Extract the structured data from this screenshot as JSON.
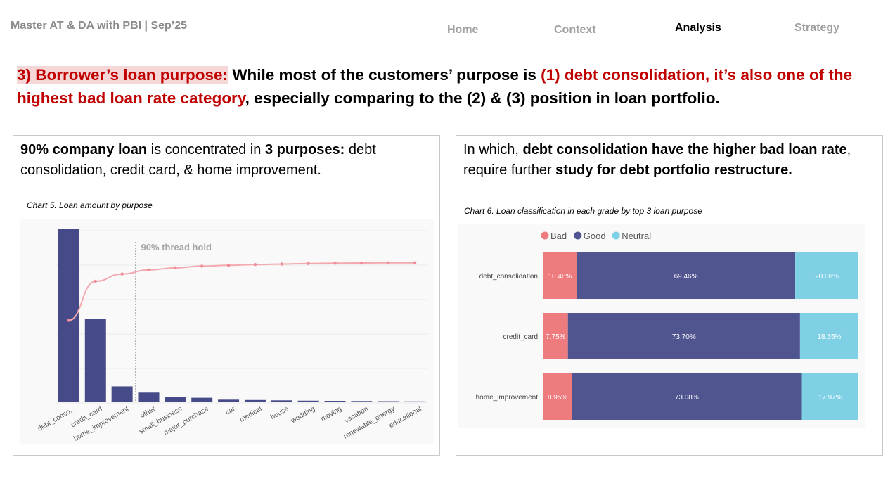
{
  "header": {
    "brand": "Master AT & DA with PBI | Sep’25",
    "nav": [
      "Home",
      "Context",
      "Analysis",
      "Strategy"
    ],
    "active_nav": "Analysis"
  },
  "headline": {
    "label": "3) Borrower’s loan purpose:",
    "part1": " While most of the customers’ purpose is ",
    "red": "(1) debt consolidation, it’s also one of the highest bad loan rate category",
    "part2": ", especially comparing to the (2) & (3) position in loan portfolio."
  },
  "left_panel": {
    "b1": "90% company loan",
    "t1": " is concentrated in ",
    "b2": "3 purposes:",
    "t2": " debt consolidation, credit card, & home improvement.",
    "caption": "Chart 5. Loan amount by purpose"
  },
  "right_panel": {
    "t1": "In which, ",
    "b1": "debt consolidation have the higher bad loan rate",
    "t2": ", require further ",
    "b2": "study for debt portfolio restructure.",
    "caption": "Chart 6. Loan classification in each grade by top 3 loan purpose"
  },
  "chart_data": [
    {
      "type": "bar",
      "title": "Chart 5. Loan amount by purpose",
      "categories": [
        "debt_conso...",
        "credit_card",
        "home_improvement",
        "other",
        "small_business",
        "major_purchase",
        "car",
        "medical",
        "house",
        "wedding",
        "moving",
        "vacation",
        "renewable_energy",
        "educational"
      ],
      "series": [
        {
          "type": "bar",
          "values": [
            100,
            48.1,
            8.8,
            5.2,
            2.5,
            2.2,
            1.1,
            0.9,
            0.7,
            0.5,
            0.4,
            0.3,
            0.2,
            0.1
          ],
          "color": "#474a89"
        },
        {
          "type": "line",
          "values": [
            47.1,
            69.8,
            74.0,
            76.4,
            77.6,
            78.6,
            79.1,
            79.5,
            79.8,
            80.1,
            80.3,
            80.4,
            80.5,
            80.5
          ],
          "color": "#f4a9b0"
        }
      ],
      "annotation": "90% thread hold",
      "threshold_after_category": "home_improvement"
    },
    {
      "type": "bar",
      "orientation": "horizontal",
      "stacked": "100%",
      "title": "Chart 6. Loan classification in each grade by top 3 loan purpose",
      "categories": [
        "debt_consolidation",
        "credit_card",
        "home_improvement"
      ],
      "legend_position": "top-left",
      "series": [
        {
          "name": "Bad",
          "color": "#ee7b7e",
          "values": [
            10.48,
            7.75,
            8.95
          ],
          "labels": [
            "10.48%",
            "7.75%",
            "8.95%"
          ]
        },
        {
          "name": "Good",
          "color": "#50548f",
          "values": [
            69.46,
            73.7,
            73.08
          ],
          "labels": [
            "69.46%",
            "73.70%",
            "73.08%"
          ]
        },
        {
          "name": "Neutral",
          "color": "#7fd0e4",
          "values": [
            20.06,
            18.55,
            17.97
          ],
          "labels": [
            "20.06%",
            "18.55%",
            "17.97%"
          ]
        }
      ]
    }
  ]
}
